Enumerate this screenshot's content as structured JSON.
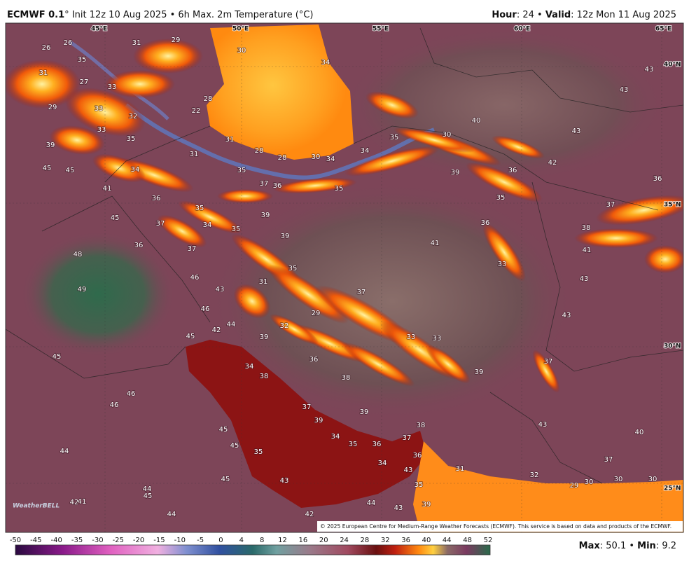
{
  "header": {
    "model": "ECMWF 0.1",
    "init": "° Init 12z 10 Aug 2025 • 6h Max. 2m Temperature (°C)",
    "hour_label": "Hour",
    "hour": ": 24 • ",
    "valid_label": "Valid",
    "valid": ": 12z Mon 11 Aug 2025"
  },
  "map": {
    "longitude_labels": [
      "45°E",
      "50°E",
      "55°E",
      "60°E",
      "65°E"
    ],
    "latitude_labels": [
      "40°N",
      "35°N",
      "30°N",
      "25°N"
    ],
    "temperature_labels": [
      26,
      26,
      31,
      29,
      30,
      34,
      31,
      35,
      27,
      33,
      28,
      29,
      33,
      32,
      22,
      33,
      35,
      31,
      28,
      28,
      30,
      34,
      34,
      35,
      30,
      40,
      39,
      31,
      45,
      45,
      34,
      35,
      37,
      36,
      35,
      39,
      36,
      42,
      43,
      43,
      43,
      36,
      41,
      36,
      35,
      39,
      35,
      37,
      45,
      37,
      34,
      35,
      39,
      36,
      38,
      36,
      37,
      41,
      41,
      48,
      35,
      33,
      46,
      31,
      49,
      43,
      37,
      43,
      46,
      29,
      43,
      42,
      44,
      32,
      45,
      39,
      33,
      33,
      45,
      36,
      37,
      34,
      38,
      39,
      38,
      46,
      46,
      37,
      39,
      39,
      38,
      43,
      40,
      45,
      34,
      35,
      36,
      37,
      45,
      35,
      44,
      36,
      34,
      37,
      31,
      43,
      45,
      43,
      32,
      29,
      30,
      30,
      30,
      35,
      44,
      45,
      42,
      41,
      44,
      43,
      39,
      44,
      42
    ],
    "credit": "© 2025 European Centre for Medium-Range Weather Forecasts (ECMWF). This service is based on data and products of the ECMWF."
  },
  "logo": "WeatherBELL",
  "colorbar": {
    "ticks": [
      -50,
      -45,
      -40,
      -35,
      -30,
      -25,
      -20,
      -15,
      -10,
      -5,
      0,
      4,
      8,
      12,
      16,
      20,
      24,
      28,
      32,
      36,
      40,
      44,
      48,
      52
    ]
  },
  "stats": {
    "max_label": "Max",
    "max": ": 50.1 • ",
    "min_label": "Min",
    "min": ": 9.2"
  }
}
